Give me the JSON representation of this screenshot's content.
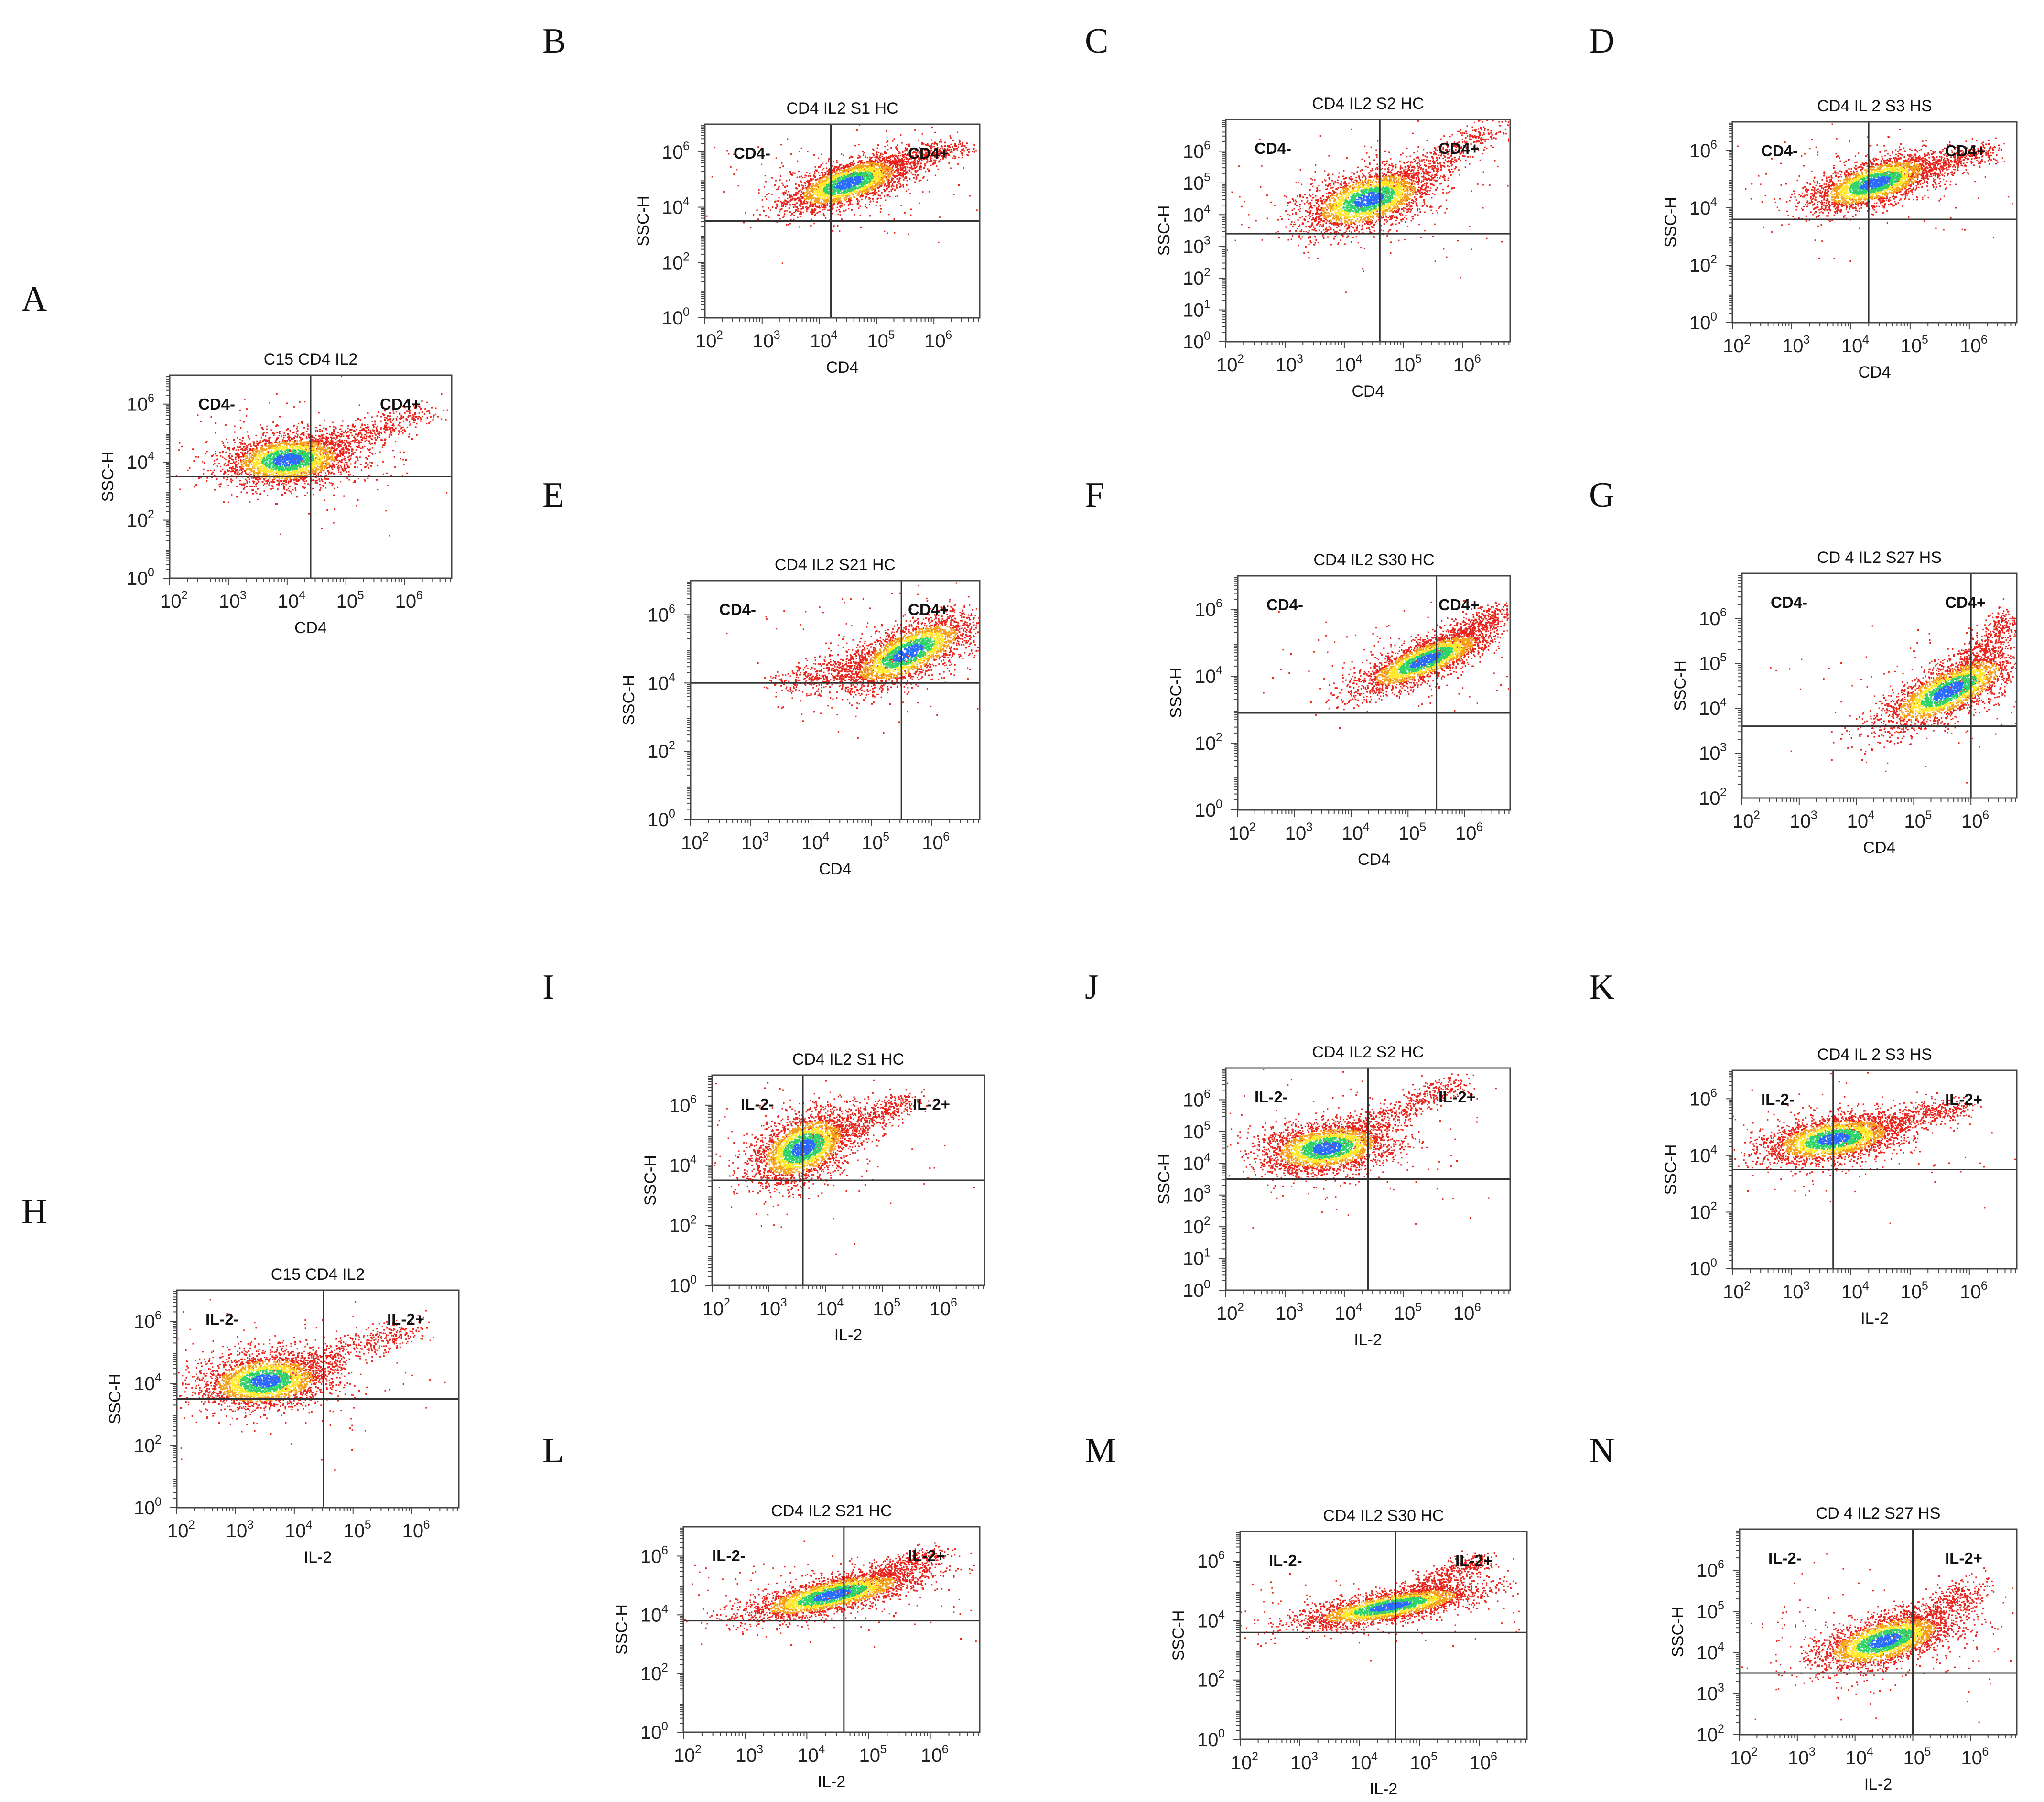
{
  "figure": {
    "description_free": true
  },
  "colors": {
    "dot_low": "#e8241c",
    "dot_mid": "#f5a018",
    "dot_high": "#ffe82a",
    "dot_core": "#2fd36a",
    "dot_peak": "#2a6cff",
    "frame": "#444444",
    "gate": "#333333"
  },
  "chart_data": [
    {
      "panel": "A",
      "type": "scatter",
      "title": "C15 CD4 IL2",
      "xlabel": "CD4",
      "ylabel": "SSC-H",
      "xlim": [
        2,
        6.8
      ],
      "ylim": [
        0,
        7
      ],
      "x_ticks": [
        2,
        3,
        4,
        5,
        6
      ],
      "y_ticks": [
        0,
        2,
        4,
        6
      ],
      "gate_x": 4.4,
      "gate_y": 3.5,
      "quadrants": {
        "left": "CD4-",
        "right": "CD4+"
      },
      "population": {
        "center_x": 4.0,
        "center_y": 4.1,
        "spread_x": 0.55,
        "spread_y": 0.45,
        "slope": 0.15
      },
      "tail": {
        "to_x": 6.3,
        "to_y": 5.7,
        "width": 0.35
      }
    },
    {
      "panel": "B",
      "type": "scatter",
      "title": "CD4 IL2 S1 HC",
      "xlabel": "CD4",
      "ylabel": "SSC-H",
      "xlim": [
        2,
        6.8
      ],
      "ylim": [
        0,
        7
      ],
      "x_ticks": [
        2,
        3,
        4,
        5,
        6
      ],
      "y_ticks": [
        0,
        2,
        4,
        6
      ],
      "gate_x": 4.2,
      "gate_y": 3.5,
      "quadrants": {
        "left": "CD4-",
        "right": "CD4+"
      },
      "population": {
        "center_x": 4.5,
        "center_y": 4.9,
        "spread_x": 0.55,
        "spread_y": 0.4,
        "slope": 0.6
      },
      "tail": {
        "to_x": 6.4,
        "to_y": 6.3,
        "width": 0.3
      }
    },
    {
      "panel": "C",
      "type": "scatter",
      "title": "CD4 IL2 S2 HC",
      "xlabel": "CD4",
      "ylabel": "SSC-H",
      "xlim": [
        2,
        6.8
      ],
      "ylim": [
        0,
        7
      ],
      "x_ticks": [
        2,
        3,
        4,
        5,
        6
      ],
      "y_ticks": [
        0,
        1,
        2,
        3,
        4,
        5,
        6
      ],
      "gate_x": 4.6,
      "gate_y": 3.4,
      "quadrants": {
        "left": "CD4-",
        "right": "CD4+"
      },
      "population": {
        "center_x": 4.4,
        "center_y": 4.5,
        "spread_x": 0.55,
        "spread_y": 0.45,
        "slope": 0.45
      },
      "tail": {
        "to_x": 6.6,
        "to_y": 6.8,
        "width": 0.3
      }
    },
    {
      "panel": "D",
      "type": "scatter",
      "title": "CD4 IL 2 S3 HS",
      "xlabel": "CD4",
      "ylabel": "SSC-H",
      "xlim": [
        2,
        6.8
      ],
      "ylim": [
        0,
        7
      ],
      "x_ticks": [
        2,
        3,
        4,
        5,
        6
      ],
      "y_ticks": [
        0,
        2,
        4,
        6
      ],
      "gate_x": 4.3,
      "gate_y": 3.6,
      "quadrants": {
        "left": "CD4-",
        "right": "CD4+"
      },
      "population": {
        "center_x": 4.4,
        "center_y": 4.9,
        "spread_x": 0.55,
        "spread_y": 0.4,
        "slope": 0.55
      },
      "tail": {
        "to_x": 6.3,
        "to_y": 6.0,
        "width": 0.3
      }
    },
    {
      "panel": "E",
      "type": "scatter",
      "title": "CD4 IL2 S21 HC",
      "xlabel": "CD4",
      "ylabel": "SSC-H",
      "xlim": [
        2,
        6.8
      ],
      "ylim": [
        0,
        7
      ],
      "x_ticks": [
        2,
        3,
        4,
        5,
        6
      ],
      "y_ticks": [
        0,
        2,
        4,
        6
      ],
      "gate_x": 5.5,
      "gate_y": 4.0,
      "quadrants": {
        "left": "CD4-",
        "right": "CD4+"
      },
      "population": {
        "center_x": 5.6,
        "center_y": 4.9,
        "spread_x": 0.55,
        "spread_y": 0.4,
        "slope": 0.7
      },
      "tail": {
        "to_x": 3.6,
        "to_y": 4.0,
        "width": 0.35
      }
    },
    {
      "panel": "F",
      "type": "scatter",
      "title": "CD4 IL2 S30 HC",
      "xlabel": "CD4",
      "ylabel": "SSC-H",
      "xlim": [
        2,
        6.8
      ],
      "ylim": [
        0,
        7
      ],
      "x_ticks": [
        2,
        3,
        4,
        5,
        6
      ],
      "y_ticks": [
        0,
        2,
        4,
        6
      ],
      "gate_x": 5.5,
      "gate_y": 2.9,
      "quadrants": {
        "left": "CD4-",
        "right": "CD4+"
      },
      "population": {
        "center_x": 5.3,
        "center_y": 4.5,
        "spread_x": 0.6,
        "spread_y": 0.3,
        "slope": 0.65
      },
      "tail": {
        "to_x": 6.6,
        "to_y": 6.0,
        "width": 0.25
      }
    },
    {
      "panel": "G",
      "type": "scatter",
      "title": "CD 4 IL2 S27 HS",
      "xlabel": "CD4",
      "ylabel": "SSC-H",
      "xlim": [
        2,
        6.8
      ],
      "ylim": [
        2,
        7
      ],
      "x_ticks": [
        2,
        3,
        4,
        5,
        6
      ],
      "y_ticks": [
        2,
        3,
        4,
        5,
        6
      ],
      "gate_x": 6.0,
      "gate_y": 3.6,
      "quadrants": {
        "left": "CD4-",
        "right": "CD4+"
      },
      "population": {
        "center_x": 5.6,
        "center_y": 4.4,
        "spread_x": 0.6,
        "spread_y": 0.3,
        "slope": 0.55
      },
      "tail": {
        "to_x": 6.7,
        "to_y": 6.1,
        "width": 0.25
      }
    },
    {
      "panel": "H",
      "type": "scatter",
      "title": "C15 CD4 IL2",
      "xlabel": "IL-2",
      "ylabel": "SSC-H",
      "xlim": [
        2,
        6.8
      ],
      "ylim": [
        0,
        7
      ],
      "x_ticks": [
        2,
        3,
        4,
        5,
        6
      ],
      "y_ticks": [
        0,
        2,
        4,
        6
      ],
      "gate_x": 4.5,
      "gate_y": 3.5,
      "quadrants": {
        "left": "IL-2-",
        "right": "IL-2+"
      },
      "population": {
        "center_x": 3.5,
        "center_y": 4.1,
        "spread_x": 0.55,
        "spread_y": 0.45,
        "slope": 0.15
      },
      "tail": {
        "to_x": 6.0,
        "to_y": 5.8,
        "width": 0.35
      }
    },
    {
      "panel": "I",
      "type": "scatter",
      "title": "CD4 IL2 S1 HC",
      "xlabel": "IL-2",
      "ylabel": "SSC-H",
      "xlim": [
        2,
        6.8
      ],
      "ylim": [
        0,
        7
      ],
      "x_ticks": [
        2,
        3,
        4,
        5,
        6
      ],
      "y_ticks": [
        0,
        2,
        4,
        6
      ],
      "gate_x": 3.6,
      "gate_y": 3.5,
      "quadrants": {
        "left": "IL-2-",
        "right": "IL-2+"
      },
      "population": {
        "center_x": 3.6,
        "center_y": 4.6,
        "spread_x": 0.45,
        "spread_y": 0.55,
        "slope": 0.6
      },
      "tail": {
        "to_x": 5.5,
        "to_y": 6.2,
        "width": 0.3
      }
    },
    {
      "panel": "J",
      "type": "scatter",
      "title": "CD4 IL2 S2 HC",
      "xlabel": "IL-2",
      "ylabel": "SSC-H",
      "xlim": [
        2,
        6.8
      ],
      "ylim": [
        0,
        7
      ],
      "x_ticks": [
        2,
        3,
        4,
        5,
        6
      ],
      "y_ticks": [
        0,
        1,
        2,
        3,
        4,
        5,
        6
      ],
      "gate_x": 4.4,
      "gate_y": 3.5,
      "quadrants": {
        "left": "IL-2-",
        "right": "IL-2+"
      },
      "population": {
        "center_x": 3.7,
        "center_y": 4.5,
        "spread_x": 0.55,
        "spread_y": 0.4,
        "slope": 0.2
      },
      "tail": {
        "to_x": 5.9,
        "to_y": 6.6,
        "width": 0.3
      }
    },
    {
      "panel": "K",
      "type": "scatter",
      "title": "CD4 IL 2 S3 HS",
      "xlabel": "IL-2",
      "ylabel": "SSC-H",
      "xlim": [
        2,
        6.8
      ],
      "ylim": [
        0,
        7
      ],
      "x_ticks": [
        2,
        3,
        4,
        5,
        6
      ],
      "y_ticks": [
        0,
        2,
        4,
        6
      ],
      "gate_x": 3.7,
      "gate_y": 3.5,
      "quadrants": {
        "left": "IL-2-",
        "right": "IL-2+"
      },
      "population": {
        "center_x": 3.7,
        "center_y": 4.6,
        "spread_x": 0.6,
        "spread_y": 0.4,
        "slope": 0.3
      },
      "tail": {
        "to_x": 5.8,
        "to_y": 5.8,
        "width": 0.35
      }
    },
    {
      "panel": "L",
      "type": "scatter",
      "title": "CD4 IL2 S21 HC",
      "xlabel": "IL-2",
      "ylabel": "SSC-H",
      "xlim": [
        2,
        6.8
      ],
      "ylim": [
        0,
        7
      ],
      "x_ticks": [
        2,
        3,
        4,
        5,
        6
      ],
      "y_ticks": [
        0,
        2,
        4,
        6
      ],
      "gate_x": 4.6,
      "gate_y": 3.8,
      "quadrants": {
        "left": "IL-2-",
        "right": "IL-2+"
      },
      "population": {
        "center_x": 4.4,
        "center_y": 4.7,
        "spread_x": 0.7,
        "spread_y": 0.3,
        "slope": 0.45
      },
      "tail": {
        "to_x": 6.0,
        "to_y": 6.1,
        "width": 0.3
      }
    },
    {
      "panel": "M",
      "type": "scatter",
      "title": "CD4 IL2 S30 HC",
      "xlabel": "IL-2",
      "ylabel": "SSC-H",
      "xlim": [
        2,
        6.8
      ],
      "ylim": [
        0,
        7
      ],
      "x_ticks": [
        2,
        3,
        4,
        5,
        6
      ],
      "y_ticks": [
        0,
        2,
        4,
        6
      ],
      "gate_x": 4.6,
      "gate_y": 3.6,
      "quadrants": {
        "left": "IL-2-",
        "right": "IL-2+"
      },
      "population": {
        "center_x": 4.5,
        "center_y": 4.5,
        "spread_x": 0.75,
        "spread_y": 0.25,
        "slope": 0.35
      },
      "tail": {
        "to_x": 6.0,
        "to_y": 6.1,
        "width": 0.25
      }
    },
    {
      "panel": "N",
      "type": "scatter",
      "title": "CD 4 IL2 S27 HS",
      "xlabel": "IL-2",
      "ylabel": "SSC-H",
      "xlim": [
        2,
        6.8
      ],
      "ylim": [
        2,
        7
      ],
      "x_ticks": [
        2,
        3,
        4,
        5,
        6
      ],
      "y_ticks": [
        2,
        3,
        4,
        5,
        6
      ],
      "gate_x": 5.0,
      "gate_y": 3.5,
      "quadrants": {
        "left": "IL-2-",
        "right": "IL-2+"
      },
      "population": {
        "center_x": 4.5,
        "center_y": 4.3,
        "spread_x": 0.6,
        "spread_y": 0.3,
        "slope": 0.35
      },
      "tail": {
        "to_x": 6.1,
        "to_y": 5.6,
        "width": 0.3
      }
    }
  ]
}
